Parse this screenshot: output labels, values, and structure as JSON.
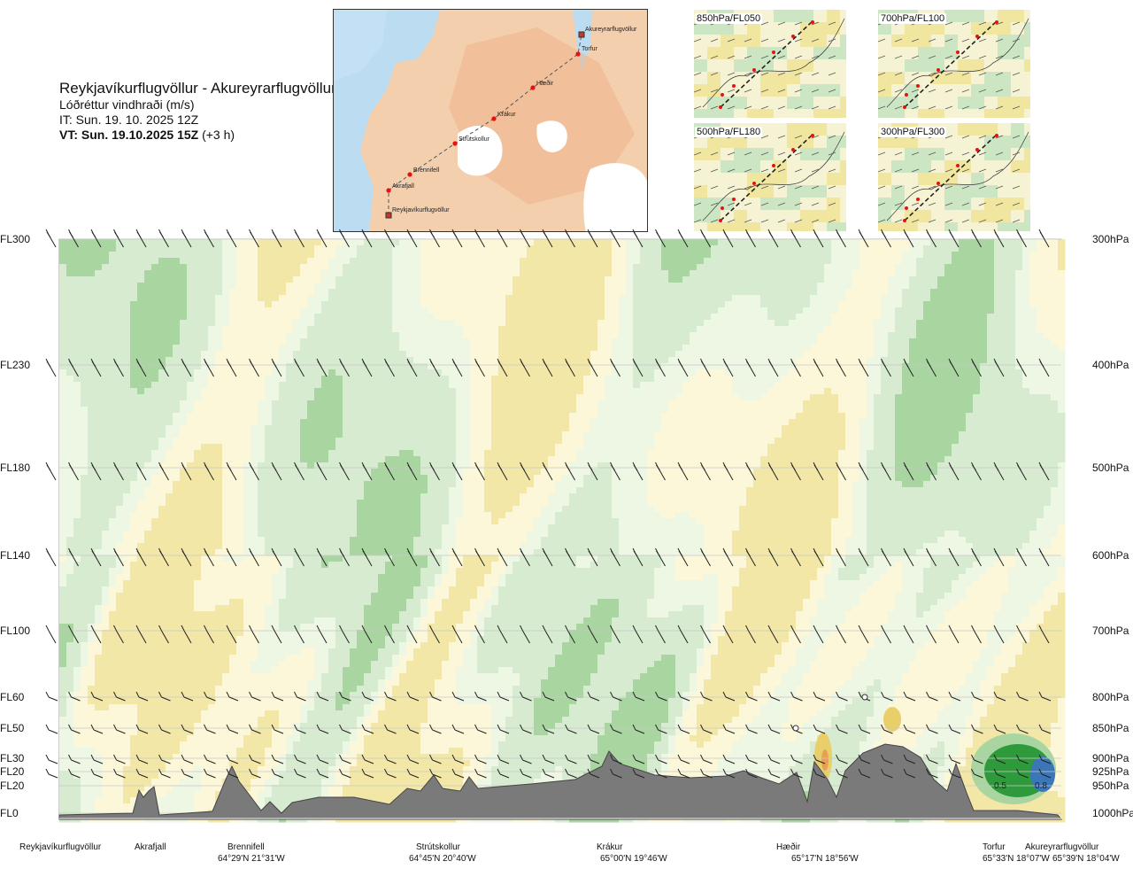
{
  "header": {
    "route": "Reykjavíkurflugvöllur - Akureyrarflugvöllur",
    "variable": "Lóðréttur vindhraði (m/s)",
    "issue_time": "IT: Sun. 19. 10. 2025 12Z",
    "valid_prefix": "VT: Sun. 19.10.2025 15Z",
    "valid_suffix": " (+3 h)"
  },
  "route_map": {
    "waypoints": [
      "Reykjavíkurflugvöllur",
      "Akrafjall",
      "Brennifell",
      "Strútskollur",
      "Krákur",
      "Hæðir",
      "Torfur",
      "Akureyrarflugvöllur"
    ]
  },
  "mini_maps": [
    {
      "label": "850hPa/FL050"
    },
    {
      "label": "700hPa/FL100"
    },
    {
      "label": "500hPa/FL180"
    },
    {
      "label": "300hPa/FL300"
    }
  ],
  "colors": {
    "down_weak": "#fbf7d8",
    "down": "#f2e7a6",
    "down_strong": "#e8cf6a",
    "down_max": "#e8a050",
    "up_weak": "#eef6e4",
    "up": "#d6ebcf",
    "up_strong": "#a9d6a0",
    "up_max": "#2e9a3c",
    "up_peak": "#3a76b8",
    "terrain": "#7a7a7a"
  },
  "chart_data": {
    "type": "heatmap",
    "title": "Lóðréttur vindhraði (m/s)",
    "y_levels": [
      {
        "fl": "FL300",
        "hpa": "300hPa",
        "p": 300
      },
      {
        "fl": "FL230",
        "hpa": "400hPa",
        "p": 400
      },
      {
        "fl": "FL180",
        "hpa": "500hPa",
        "p": 500
      },
      {
        "fl": "FL140",
        "hpa": "600hPa",
        "p": 600
      },
      {
        "fl": "FL100",
        "hpa": "700hPa",
        "p": 700
      },
      {
        "fl": "FL60",
        "hpa": "800hPa",
        "p": 800
      },
      {
        "fl": "FL50",
        "hpa": "850hPa",
        "p": 850
      },
      {
        "fl": "FL30",
        "hpa": "900hPa",
        "p": 900
      },
      {
        "fl": "FL20",
        "hpa": "925hPa",
        "p": 925
      },
      {
        "fl": "FL20",
        "hpa": "950hPa",
        "p": 950
      },
      {
        "fl": "FL0",
        "hpa": "1000hPa",
        "p": 1000
      }
    ],
    "waypoints": [
      {
        "name": "Reykjavíkurflugvöllur",
        "coord": "",
        "pos": 0.0
      },
      {
        "name": "Akrafjall",
        "coord": "",
        "pos": 0.1
      },
      {
        "name": "Brennifell",
        "coord": "64°29'N 21°31'W",
        "pos": 0.19
      },
      {
        "name": "Strútskollur",
        "coord": "64°45'N 20°40'W",
        "pos": 0.38
      },
      {
        "name": "Krákur",
        "coord": "65°00'N 19°46'W",
        "pos": 0.57
      },
      {
        "name": "Hæðir",
        "coord": "65°17'N 18°56'W",
        "pos": 0.76
      },
      {
        "name": "Torfur",
        "coord": "65°33'N 18°07'W",
        "pos": 0.94
      },
      {
        "name": "Akureyrarflugvöllur",
        "coord": "65°39'N 18°04'W",
        "pos": 1.0
      }
    ],
    "annotations": [
      "0.5",
      "0.8"
    ]
  }
}
